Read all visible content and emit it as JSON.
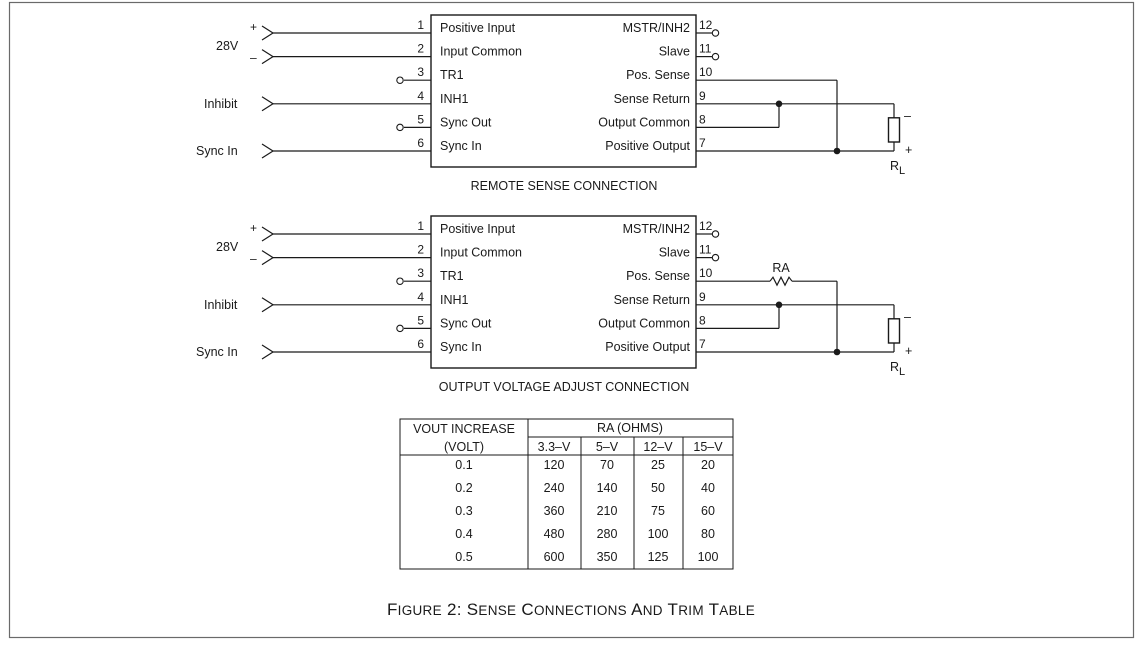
{
  "figure_caption": {
    "parts": [
      [
        "F",
        "IGURE"
      ],
      [
        " 2: ",
        ""
      ],
      [
        "S",
        "ENSE"
      ],
      [
        " ",
        ""
      ],
      [
        "C",
        "ONNECTIONS"
      ],
      [
        " ",
        ""
      ],
      [
        "A",
        "ND"
      ],
      [
        " ",
        ""
      ],
      [
        "T",
        "RIM"
      ],
      [
        " ",
        ""
      ],
      [
        "T",
        "ABLE"
      ]
    ],
    "full": "Figure 2: Sense Connections and Trim Table"
  },
  "inputs": {
    "voltage": "28V",
    "plus": "+",
    "minus": "–",
    "inhibit": "Inhibit",
    "sync_in": "Sync In"
  },
  "pins_left": [
    {
      "num": "1",
      "label": "Positive Input"
    },
    {
      "num": "2",
      "label": "Input Common"
    },
    {
      "num": "3",
      "label": "TR1"
    },
    {
      "num": "4",
      "label": "INH1"
    },
    {
      "num": "5",
      "label": "Sync Out"
    },
    {
      "num": "6",
      "label": "Sync In"
    }
  ],
  "pins_right": [
    {
      "num": "12",
      "label": "MSTR/INH2"
    },
    {
      "num": "11",
      "label": "Slave"
    },
    {
      "num": "10",
      "label": "Pos. Sense"
    },
    {
      "num": "9",
      "label": "Sense Return"
    },
    {
      "num": "8",
      "label": "Output Common"
    },
    {
      "num": "7",
      "label": "Positive Output"
    }
  ],
  "load": {
    "name": "R",
    "subscript": "L",
    "minus": "–",
    "plus": "+"
  },
  "resistor_ra": "RA",
  "diagrams": [
    {
      "caption": "REMOTE SENSE CONNECTION"
    },
    {
      "caption": "OUTPUT VOLTAGE ADJUST CONNECTION"
    }
  ],
  "trim_table": {
    "col1_header_line1": "VOUT INCREASE",
    "col1_header_line2": "(VOLT)",
    "group_header": "RA (OHMS)",
    "sub_headers": [
      "3.3–V",
      "5–V",
      "12–V",
      "15–V"
    ],
    "rows": [
      [
        "0.1",
        "120",
        "70",
        "25",
        "20"
      ],
      [
        "0.2",
        "240",
        "140",
        "50",
        "40"
      ],
      [
        "0.3",
        "360",
        "210",
        "75",
        "60"
      ],
      [
        "0.4",
        "480",
        "280",
        "100",
        "80"
      ],
      [
        "0.5",
        "600",
        "350",
        "125",
        "100"
      ]
    ]
  }
}
